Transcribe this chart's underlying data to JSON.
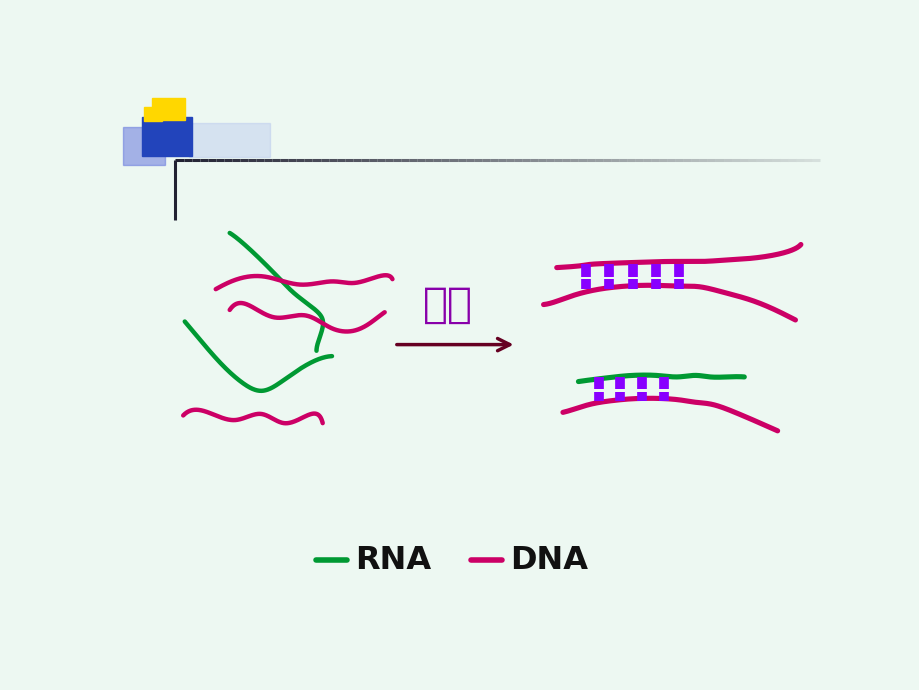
{
  "bg_color": "#edf8f2",
  "dna_color": "#cc0066",
  "rna_color": "#009933",
  "bridge_color": "#8800ff",
  "arrow_color": "#660022",
  "label_color": "#8800aa",
  "title_text": "复性",
  "legend_rna": "RNA",
  "legend_dna": "DNA",
  "lw_main": 3.2,
  "lw_bridge": 7.0
}
